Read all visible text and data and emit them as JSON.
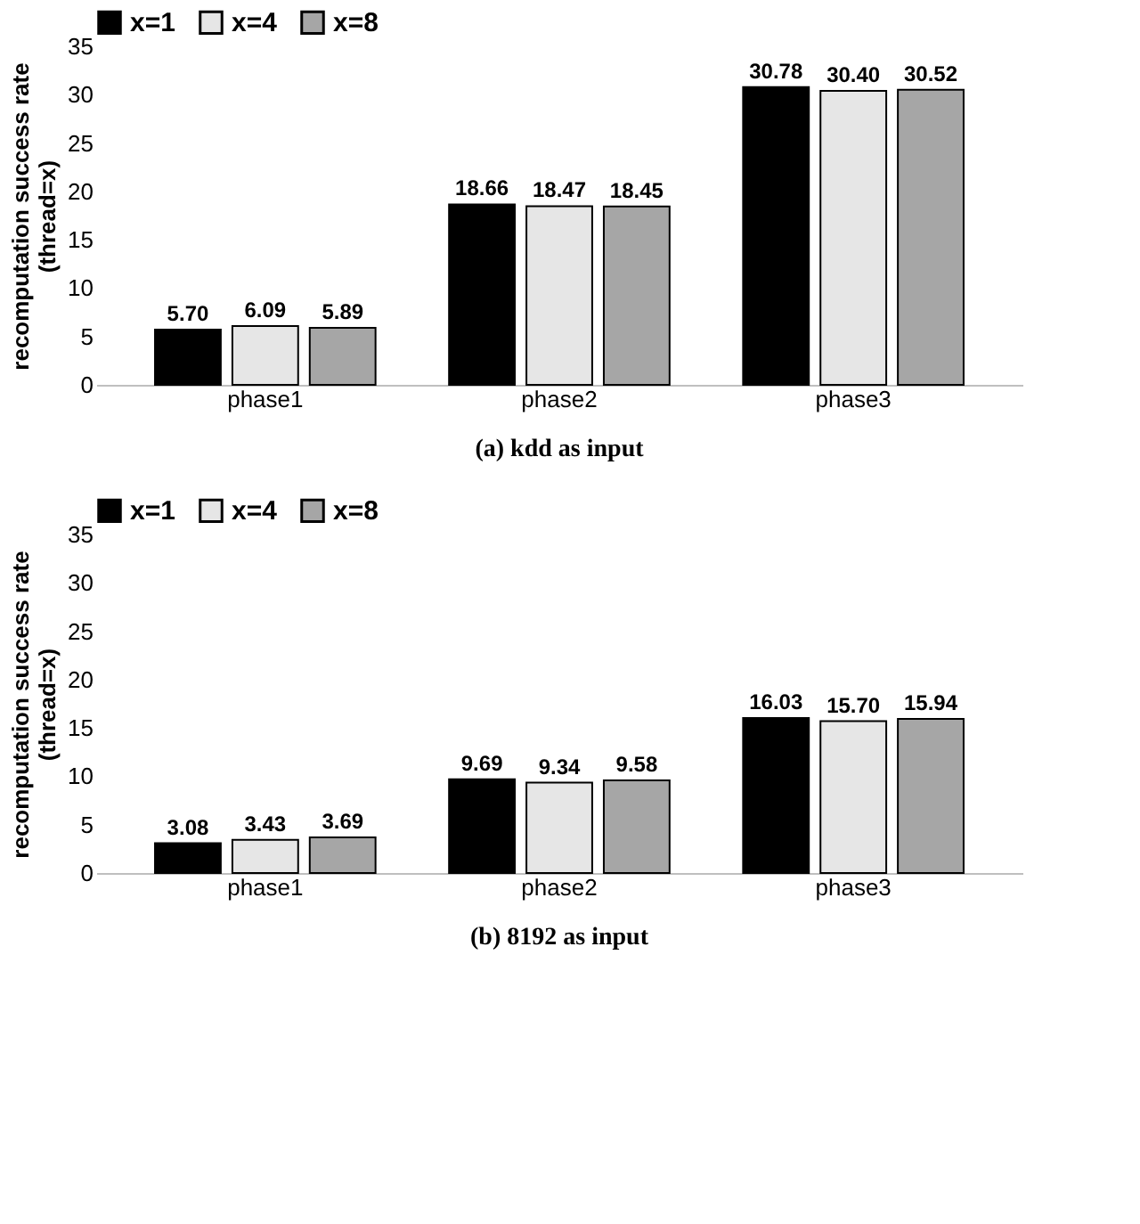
{
  "chart_data": [
    {
      "type": "bar",
      "title": "(a) kdd as input",
      "ylabel": "recomputation success rate (thread=x)",
      "categories": [
        "phase1",
        "phase2",
        "phase3"
      ],
      "series": [
        {
          "name": "x=1",
          "color": "#000000",
          "values": [
            5.7,
            18.66,
            30.78
          ],
          "value_labels": [
            "5.70",
            "18.66",
            "30.78"
          ]
        },
        {
          "name": "x=4",
          "color": "#e6e6e6",
          "values": [
            6.09,
            18.47,
            30.4
          ],
          "value_labels": [
            "6.09",
            "18.47",
            "30.40"
          ]
        },
        {
          "name": "x=8",
          "color": "#a6a6a6",
          "values": [
            5.89,
            18.45,
            30.52
          ],
          "value_labels": [
            "5.89",
            "18.45",
            "30.52"
          ]
        }
      ],
      "ylim": [
        0,
        35
      ],
      "yticks": [
        0,
        5,
        10,
        15,
        20,
        25,
        30,
        35
      ],
      "grid": false,
      "legend": "top"
    },
    {
      "type": "bar",
      "title": "(b) 8192 as input",
      "ylabel": "recomputation success rate (thread=x)",
      "categories": [
        "phase1",
        "phase2",
        "phase3"
      ],
      "series": [
        {
          "name": "x=1",
          "color": "#000000",
          "values": [
            3.08,
            9.69,
            16.03
          ],
          "value_labels": [
            "3.08",
            "9.69",
            "16.03"
          ]
        },
        {
          "name": "x=4",
          "color": "#e6e6e6",
          "values": [
            3.43,
            9.34,
            15.7
          ],
          "value_labels": [
            "3.43",
            "9.34",
            "15.70"
          ]
        },
        {
          "name": "x=8",
          "color": "#a6a6a6",
          "values": [
            3.69,
            9.58,
            15.94
          ],
          "value_labels": [
            "3.69",
            "9.58",
            "15.94"
          ]
        }
      ],
      "ylim": [
        0,
        35
      ],
      "yticks": [
        0,
        5,
        10,
        15,
        20,
        25,
        30,
        35
      ],
      "grid": false,
      "legend": "top"
    }
  ]
}
